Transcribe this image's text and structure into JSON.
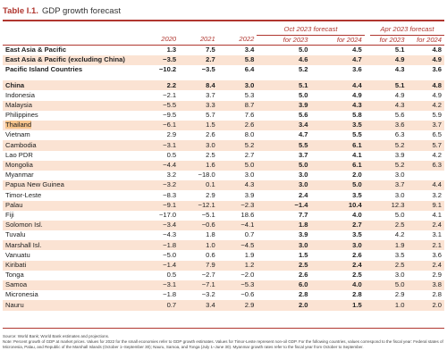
{
  "title": {
    "number": "Table I.1.",
    "text": "GDP growth forecast"
  },
  "header": {
    "group_oct": "Oct 2023 forecast",
    "group_apr": "Apr 2023 forecast",
    "years": [
      "2020",
      "2021",
      "2022",
      "for 2023",
      "for 2024",
      "for 2023",
      "for 2024"
    ]
  },
  "rows": [
    {
      "name": "East Asia & Pacific",
      "bold": true,
      "alt": false,
      "v": [
        "1.3",
        "7.5",
        "3.4",
        "5.0",
        "4.5",
        "5.1",
        "4.8"
      ]
    },
    {
      "name": "East Asia & Pacific (excluding China)",
      "bold": true,
      "alt": true,
      "v": [
        "−3.5",
        "2.7",
        "5.8",
        "4.6",
        "4.7",
        "4.9",
        "4.9"
      ]
    },
    {
      "name": "Pacific Island Countries",
      "bold": true,
      "alt": false,
      "v": [
        "−10.2",
        "−3.5",
        "6.4",
        "5.2",
        "3.6",
        "4.3",
        "3.6"
      ]
    },
    {
      "gap": true
    },
    {
      "name": "China",
      "bold": true,
      "alt": true,
      "v": [
        "2.2",
        "8.4",
        "3.0",
        "5.1",
        "4.4",
        "5.1",
        "4.8"
      ]
    },
    {
      "name": "Indonesia",
      "alt": false,
      "v": [
        "−2.1",
        "3.7",
        "5.3",
        "5.0",
        "4.9",
        "4.9",
        "4.9"
      ]
    },
    {
      "name": "Malaysia",
      "alt": true,
      "v": [
        "−5.5",
        "3.3",
        "8.7",
        "3.9",
        "4.3",
        "4.3",
        "4.2"
      ]
    },
    {
      "name": "Philippines",
      "alt": false,
      "v": [
        "−9.5",
        "5.7",
        "7.6",
        "5.6",
        "5.8",
        "5.6",
        "5.9"
      ]
    },
    {
      "name": "Thailand",
      "alt": true,
      "hl": true,
      "v": [
        "−6.1",
        "1.5",
        "2.6",
        "3.4",
        "3.5",
        "3.6",
        "3.7"
      ]
    },
    {
      "name": "Vietnam",
      "alt": false,
      "v": [
        "2.9",
        "2.6",
        "8.0",
        "4.7",
        "5.5",
        "6.3",
        "6.5"
      ]
    },
    {
      "name": "Cambodia",
      "alt": true,
      "v": [
        "−3.1",
        "3.0",
        "5.2",
        "5.5",
        "6.1",
        "5.2",
        "5.7"
      ]
    },
    {
      "name": "Lao PDR",
      "alt": false,
      "v": [
        "0.5",
        "2.5",
        "2.7",
        "3.7",
        "4.1",
        "3.9",
        "4.2"
      ]
    },
    {
      "name": "Mongolia",
      "alt": true,
      "v": [
        "−4.4",
        "1.6",
        "5.0",
        "5.0",
        "6.1",
        "5.2",
        "6.3"
      ]
    },
    {
      "name": "Myanmar",
      "alt": false,
      "v": [
        "3.2",
        "−18.0",
        "3.0",
        "3.0",
        "2.0",
        "3.0",
        ""
      ]
    },
    {
      "name": "Papua New Guinea",
      "alt": true,
      "v": [
        "−3.2",
        "0.1",
        "4.3",
        "3.0",
        "5.0",
        "3.7",
        "4.4"
      ]
    },
    {
      "name": "Timor-Leste",
      "alt": false,
      "v": [
        "−8.3",
        "2.9",
        "3.9",
        "2.4",
        "3.5",
        "3.0",
        "3.2"
      ]
    },
    {
      "name": "Palau",
      "alt": true,
      "v": [
        "−9.1",
        "−12.1",
        "−2.3",
        "−1.4",
        "10.4",
        "12.3",
        "9.1"
      ]
    },
    {
      "name": "Fiji",
      "alt": false,
      "v": [
        "−17.0",
        "−5.1",
        "18.6",
        "7.7",
        "4.0",
        "5.0",
        "4.1"
      ]
    },
    {
      "name": "Solomon Isl.",
      "alt": true,
      "v": [
        "−3.4",
        "−0.6",
        "−4.1",
        "1.8",
        "2.7",
        "2.5",
        "2.4"
      ]
    },
    {
      "name": "Tuvalu",
      "alt": false,
      "v": [
        "−4.3",
        "1.8",
        "0.7",
        "3.9",
        "3.5",
        "4.2",
        "3.1"
      ]
    },
    {
      "name": "Marshall Isl.",
      "alt": true,
      "v": [
        "−1.8",
        "1.0",
        "−4.5",
        "3.0",
        "3.0",
        "1.9",
        "2.1"
      ]
    },
    {
      "name": "Vanuatu",
      "alt": false,
      "v": [
        "−5.0",
        "0.6",
        "1.9",
        "1.5",
        "2.6",
        "3.5",
        "3.6"
      ]
    },
    {
      "name": "Kiribati",
      "alt": true,
      "v": [
        "−1.4",
        "7.9",
        "1.2",
        "2.5",
        "2.4",
        "2.5",
        "2.4"
      ]
    },
    {
      "name": "Tonga",
      "alt": false,
      "v": [
        "0.5",
        "−2.7",
        "−2.0",
        "2.6",
        "2.5",
        "3.0",
        "2.9"
      ]
    },
    {
      "name": "Samoa",
      "alt": true,
      "v": [
        "−3.1",
        "−7.1",
        "−5.3",
        "6.0",
        "4.0",
        "5.0",
        "3.8"
      ]
    },
    {
      "name": "Micronesia",
      "alt": false,
      "v": [
        "−1.8",
        "−3.2",
        "−0.6",
        "2.8",
        "2.8",
        "2.9",
        "2.8"
      ]
    },
    {
      "name": "Nauru",
      "alt": true,
      "v": [
        "0.7",
        "3.4",
        "2.9",
        "2.0",
        "1.5",
        "1.0",
        "2.0"
      ]
    }
  ],
  "notes": {
    "source": "Source: World Bank; World Bank estimates and projections.",
    "note": "Note: Percent growth of GDP at market prices. Values for 2022 for the small economies refer to GDP growth estimates. Values for Timor-Leste represent non-oil GDP. For the following countries, values correspond to the fiscal year: Federal states of Micronesia, Palau, and Republic of the Marshall Islands (October 1–September 30); Nauru, Samoa, and Tonga (July 1–June 30). Myanmar growth rates refer to the fiscal year from October to September."
  }
}
